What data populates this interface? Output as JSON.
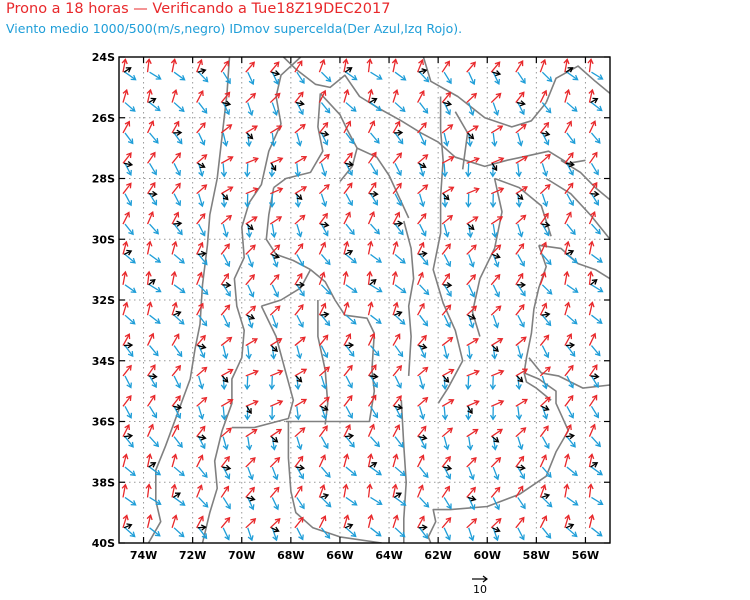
{
  "title": "Prono a 18 horas — Verificando a Tue18Z19DEC2017",
  "subtitle": "Viento medio 1000/500(m/s,negro) IDmov supercelda(Der Azul,Izq Rojo).",
  "colors": {
    "mean_wind": "#000000",
    "right_mover": "#1f9ed8",
    "left_mover": "#e8282b",
    "borders": "#808080",
    "grid": "#999999"
  },
  "map": {
    "lon_range": [
      -75,
      -55
    ],
    "lat_range": [
      -40,
      -24
    ],
    "x_ticks": [
      {
        "lon": -74,
        "label": "74W"
      },
      {
        "lon": -72,
        "label": "72W"
      },
      {
        "lon": -70,
        "label": "70W"
      },
      {
        "lon": -68,
        "label": "68W"
      },
      {
        "lon": -66,
        "label": "66W"
      },
      {
        "lon": -64,
        "label": "64W"
      },
      {
        "lon": -62,
        "label": "62W"
      },
      {
        "lon": -60,
        "label": "60W"
      },
      {
        "lon": -58,
        "label": "58W"
      },
      {
        "lon": -56,
        "label": "56W"
      }
    ],
    "y_ticks": [
      {
        "lat": -24,
        "label": "24S"
      },
      {
        "lat": -26,
        "label": "26S"
      },
      {
        "lat": -28,
        "label": "28S"
      },
      {
        "lat": -30,
        "label": "30S"
      },
      {
        "lat": -32,
        "label": "32S"
      },
      {
        "lat": -34,
        "label": "34S"
      },
      {
        "lat": -36,
        "label": "36S"
      },
      {
        "lat": -38,
        "label": "38S"
      },
      {
        "lat": -40,
        "label": "40S"
      }
    ],
    "grid": "dotted at every 2 degrees"
  },
  "reference_vector": {
    "label": "10",
    "unit": "m/s"
  }
}
